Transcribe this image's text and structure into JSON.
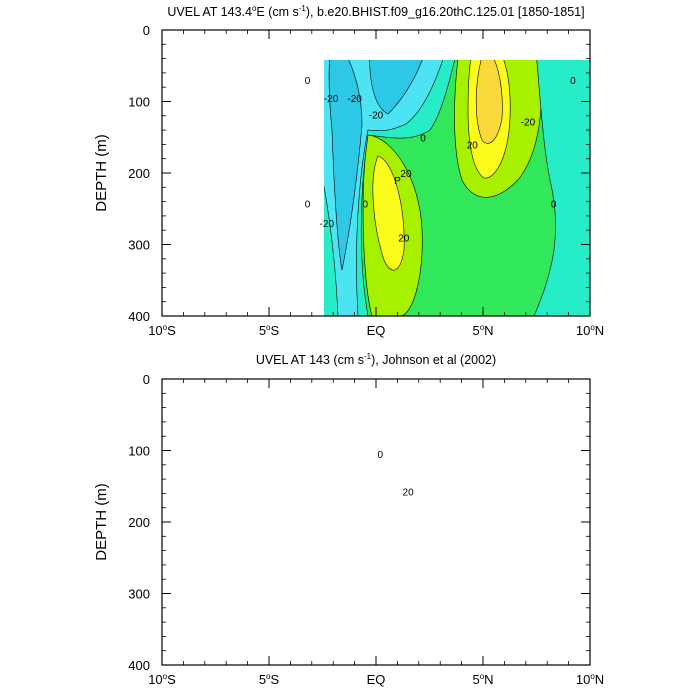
{
  "chart_data": [
    {
      "type": "contour",
      "title_parts": [
        "UVEL AT 143.4",
        "o",
        "E (cm s",
        "-1",
        "), b.e20.BHIST.f09_g16.20thC.125.01 [1850-1851]"
      ],
      "ylabel": "DEPTH (m)",
      "xlabel": "",
      "xlim": [
        -10,
        10
      ],
      "ylim": [
        0,
        400
      ],
      "y_inverted": true,
      "x_ticks": [
        {
          "value": -10,
          "label": "10",
          "sup": "o",
          "suffix": "S"
        },
        {
          "value": -5,
          "label": "5",
          "sup": "o",
          "suffix": "S"
        },
        {
          "value": 0,
          "label": "EQ",
          "sup": "",
          "suffix": ""
        },
        {
          "value": 5,
          "label": "5",
          "sup": "o",
          "suffix": "N"
        },
        {
          "value": 10,
          "label": "10",
          "sup": "o",
          "suffix": "N"
        }
      ],
      "y_ticks": [
        {
          "value": 0,
          "label": "0"
        },
        {
          "value": 100,
          "label": "100"
        },
        {
          "value": 200,
          "label": "200"
        },
        {
          "value": 300,
          "label": "300"
        },
        {
          "value": 400,
          "label": "400"
        }
      ],
      "contour_labels": [
        {
          "x": -3.2,
          "y": 70,
          "text": "0"
        },
        {
          "x": -2.1,
          "y": 95,
          "text": "-20"
        },
        {
          "x": -1.0,
          "y": 95,
          "text": "-20"
        },
        {
          "x": 0.0,
          "y": 118,
          "text": "-20"
        },
        {
          "x": 2.2,
          "y": 150,
          "text": "0"
        },
        {
          "x": 1.4,
          "y": 200,
          "text": "20"
        },
        {
          "x": 1.0,
          "y": 210,
          "text": "P"
        },
        {
          "x": -3.2,
          "y": 243,
          "text": "0"
        },
        {
          "x": -0.5,
          "y": 243,
          "text": "0"
        },
        {
          "x": -2.3,
          "y": 270,
          "text": "-20"
        },
        {
          "x": 1.3,
          "y": 290,
          "text": "20"
        },
        {
          "x": 4.5,
          "y": 160,
          "text": "20"
        },
        {
          "x": 7.1,
          "y": 128,
          "text": "-20"
        },
        {
          "x": 9.2,
          "y": 70,
          "text": "0"
        },
        {
          "x": 8.3,
          "y": 243,
          "text": "0"
        }
      ]
    },
    {
      "type": "contour",
      "title_parts": [
        "UVEL AT 143 (cm s",
        "-1",
        "), Johnson et al (2002)"
      ],
      "ylabel": "DEPTH (m)",
      "xlabel": "",
      "xlim": [
        -10,
        10
      ],
      "ylim": [
        0,
        400
      ],
      "y_inverted": true,
      "x_ticks": [
        {
          "value": -10,
          "label": "10",
          "sup": "o",
          "suffix": "S"
        },
        {
          "value": -5,
          "label": "5",
          "sup": "o",
          "suffix": "S"
        },
        {
          "value": 0,
          "label": "EQ",
          "sup": "",
          "suffix": ""
        },
        {
          "value": 5,
          "label": "5",
          "sup": "o",
          "suffix": "N"
        },
        {
          "value": 10,
          "label": "10",
          "sup": "o",
          "suffix": "N"
        }
      ],
      "y_ticks": [
        {
          "value": 0,
          "label": "0"
        },
        {
          "value": 100,
          "label": "100"
        },
        {
          "value": 200,
          "label": "200"
        },
        {
          "value": 300,
          "label": "300"
        },
        {
          "value": 400,
          "label": "400"
        }
      ],
      "contour_labels": [
        {
          "x": 0.2,
          "y": 105,
          "text": "0"
        },
        {
          "x": 1.5,
          "y": 157,
          "text": "20"
        }
      ]
    }
  ],
  "colors": {
    "level_neg30": "#1aa3df",
    "level_neg20": "#2cc8e6",
    "level_neg10": "#4ce3f2",
    "level_0": "#27ecc8",
    "level_10": "#30e85a",
    "level_20": "#a6f000",
    "level_30": "#fbfb1c",
    "level_40": "#fbd93a",
    "level_50": "#f5b53b"
  }
}
